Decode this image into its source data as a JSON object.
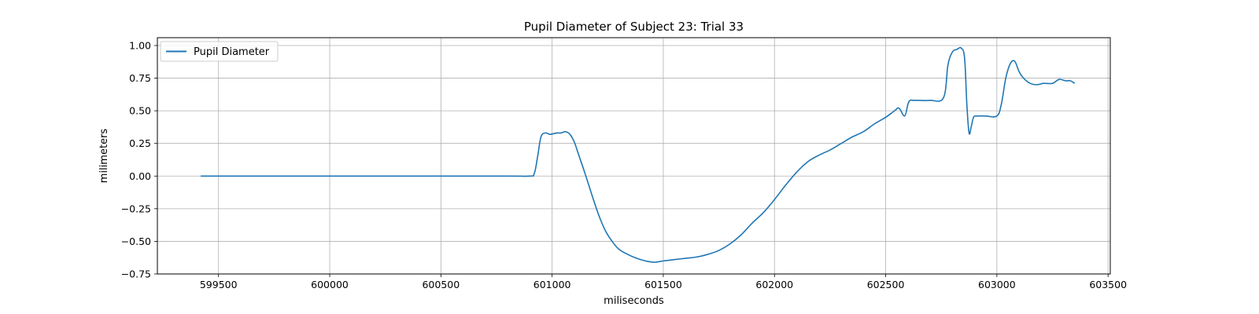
{
  "chart_data": {
    "type": "line",
    "title": "Pupil Diameter of Subject 23: Trial 33",
    "xlabel": "miliseconds",
    "ylabel": "milimeters",
    "xlim": [
      599225,
      603510
    ],
    "ylim": [
      -0.75,
      1.06
    ],
    "xticks": [
      599500,
      600000,
      600500,
      601000,
      601500,
      602000,
      602500,
      603000,
      603500
    ],
    "yticks": [
      -0.75,
      -0.5,
      -0.25,
      0.0,
      0.25,
      0.5,
      0.75,
      1.0
    ],
    "ytick_labels": [
      "−0.75",
      "−0.50",
      "−0.25",
      "0.00",
      "0.25",
      "0.50",
      "0.75",
      "1.00"
    ],
    "grid": true,
    "legend": "top-left",
    "colors": {
      "series": "#1f77b4",
      "grid": "#b0b0b0"
    },
    "series": [
      {
        "name": "Pupil Diameter",
        "x": [
          599420,
          599600,
          600000,
          600500,
          600800,
          600900,
          600920,
          600935,
          600950,
          600970,
          600990,
          601020,
          601040,
          601060,
          601080,
          601100,
          601120,
          601150,
          601180,
          601210,
          601240,
          601270,
          601300,
          601340,
          601380,
          601420,
          601460,
          601500,
          601550,
          601600,
          601650,
          601700,
          601750,
          601800,
          601850,
          601900,
          601950,
          602000,
          602050,
          602100,
          602150,
          602200,
          602250,
          602300,
          602350,
          602400,
          602450,
          602500,
          602540,
          602560,
          602585,
          602600,
          602610,
          602625,
          602650,
          602700,
          602760,
          602780,
          602800,
          602820,
          602840,
          602855,
          602865,
          602875,
          602885,
          602895,
          602910,
          602950,
          603000,
          603020,
          603040,
          603060,
          603080,
          603100,
          603120,
          603150,
          603180,
          603210,
          603250,
          603280,
          603310,
          603330,
          603350
        ],
        "y": [
          0.0,
          0.0,
          0.0,
          0.0,
          0.0,
          0.0,
          0.02,
          0.15,
          0.3,
          0.33,
          0.32,
          0.33,
          0.33,
          0.34,
          0.32,
          0.26,
          0.16,
          0.01,
          -0.15,
          -0.3,
          -0.42,
          -0.5,
          -0.56,
          -0.6,
          -0.63,
          -0.65,
          -0.66,
          -0.65,
          -0.64,
          -0.63,
          -0.62,
          -0.6,
          -0.57,
          -0.52,
          -0.45,
          -0.36,
          -0.28,
          -0.18,
          -0.07,
          0.03,
          0.11,
          0.16,
          0.2,
          0.25,
          0.3,
          0.34,
          0.4,
          0.45,
          0.5,
          0.52,
          0.46,
          0.55,
          0.58,
          0.58,
          0.58,
          0.58,
          0.6,
          0.85,
          0.95,
          0.97,
          0.98,
          0.9,
          0.55,
          0.33,
          0.38,
          0.45,
          0.46,
          0.46,
          0.46,
          0.55,
          0.75,
          0.86,
          0.88,
          0.8,
          0.75,
          0.71,
          0.7,
          0.71,
          0.71,
          0.74,
          0.73,
          0.73,
          0.71
        ]
      }
    ]
  }
}
